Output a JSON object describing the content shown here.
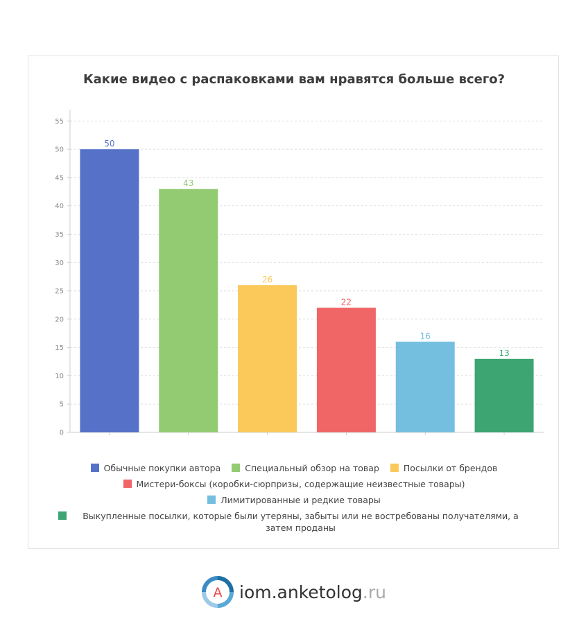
{
  "chart_data": {
    "type": "bar",
    "title": "Какие видео с распаковками вам нравятся больше всего?",
    "xlabel": "",
    "ylabel": "",
    "ylim": [
      0,
      57
    ],
    "yticks": [
      0,
      5,
      10,
      15,
      20,
      25,
      30,
      35,
      40,
      45,
      50,
      55
    ],
    "grid": true,
    "legend_position": "bottom",
    "series": [
      {
        "name": "Обычные покупки автора",
        "value": 50,
        "color": "#5572c8"
      },
      {
        "name": "Специальный обзор на товар",
        "value": 43,
        "color": "#93cb72"
      },
      {
        "name": "Посылки от брендов",
        "value": 26,
        "color": "#fac95a"
      },
      {
        "name": "Мистери-боксы (коробки-сюрпризы, содержащие неизвестные товары)",
        "value": 22,
        "color": "#f06566"
      },
      {
        "name": "Лимитированные и редкие товары",
        "value": 16,
        "color": "#74bfdf"
      },
      {
        "name": "Выкупленные посылки, которые были утеряны, забыты или не востребованы получателями, а затем проданы",
        "value": 13,
        "color": "#3da571"
      }
    ]
  },
  "brand": {
    "logo_letter": "A",
    "name": "iom.anketolog",
    "tld": ".ru"
  }
}
